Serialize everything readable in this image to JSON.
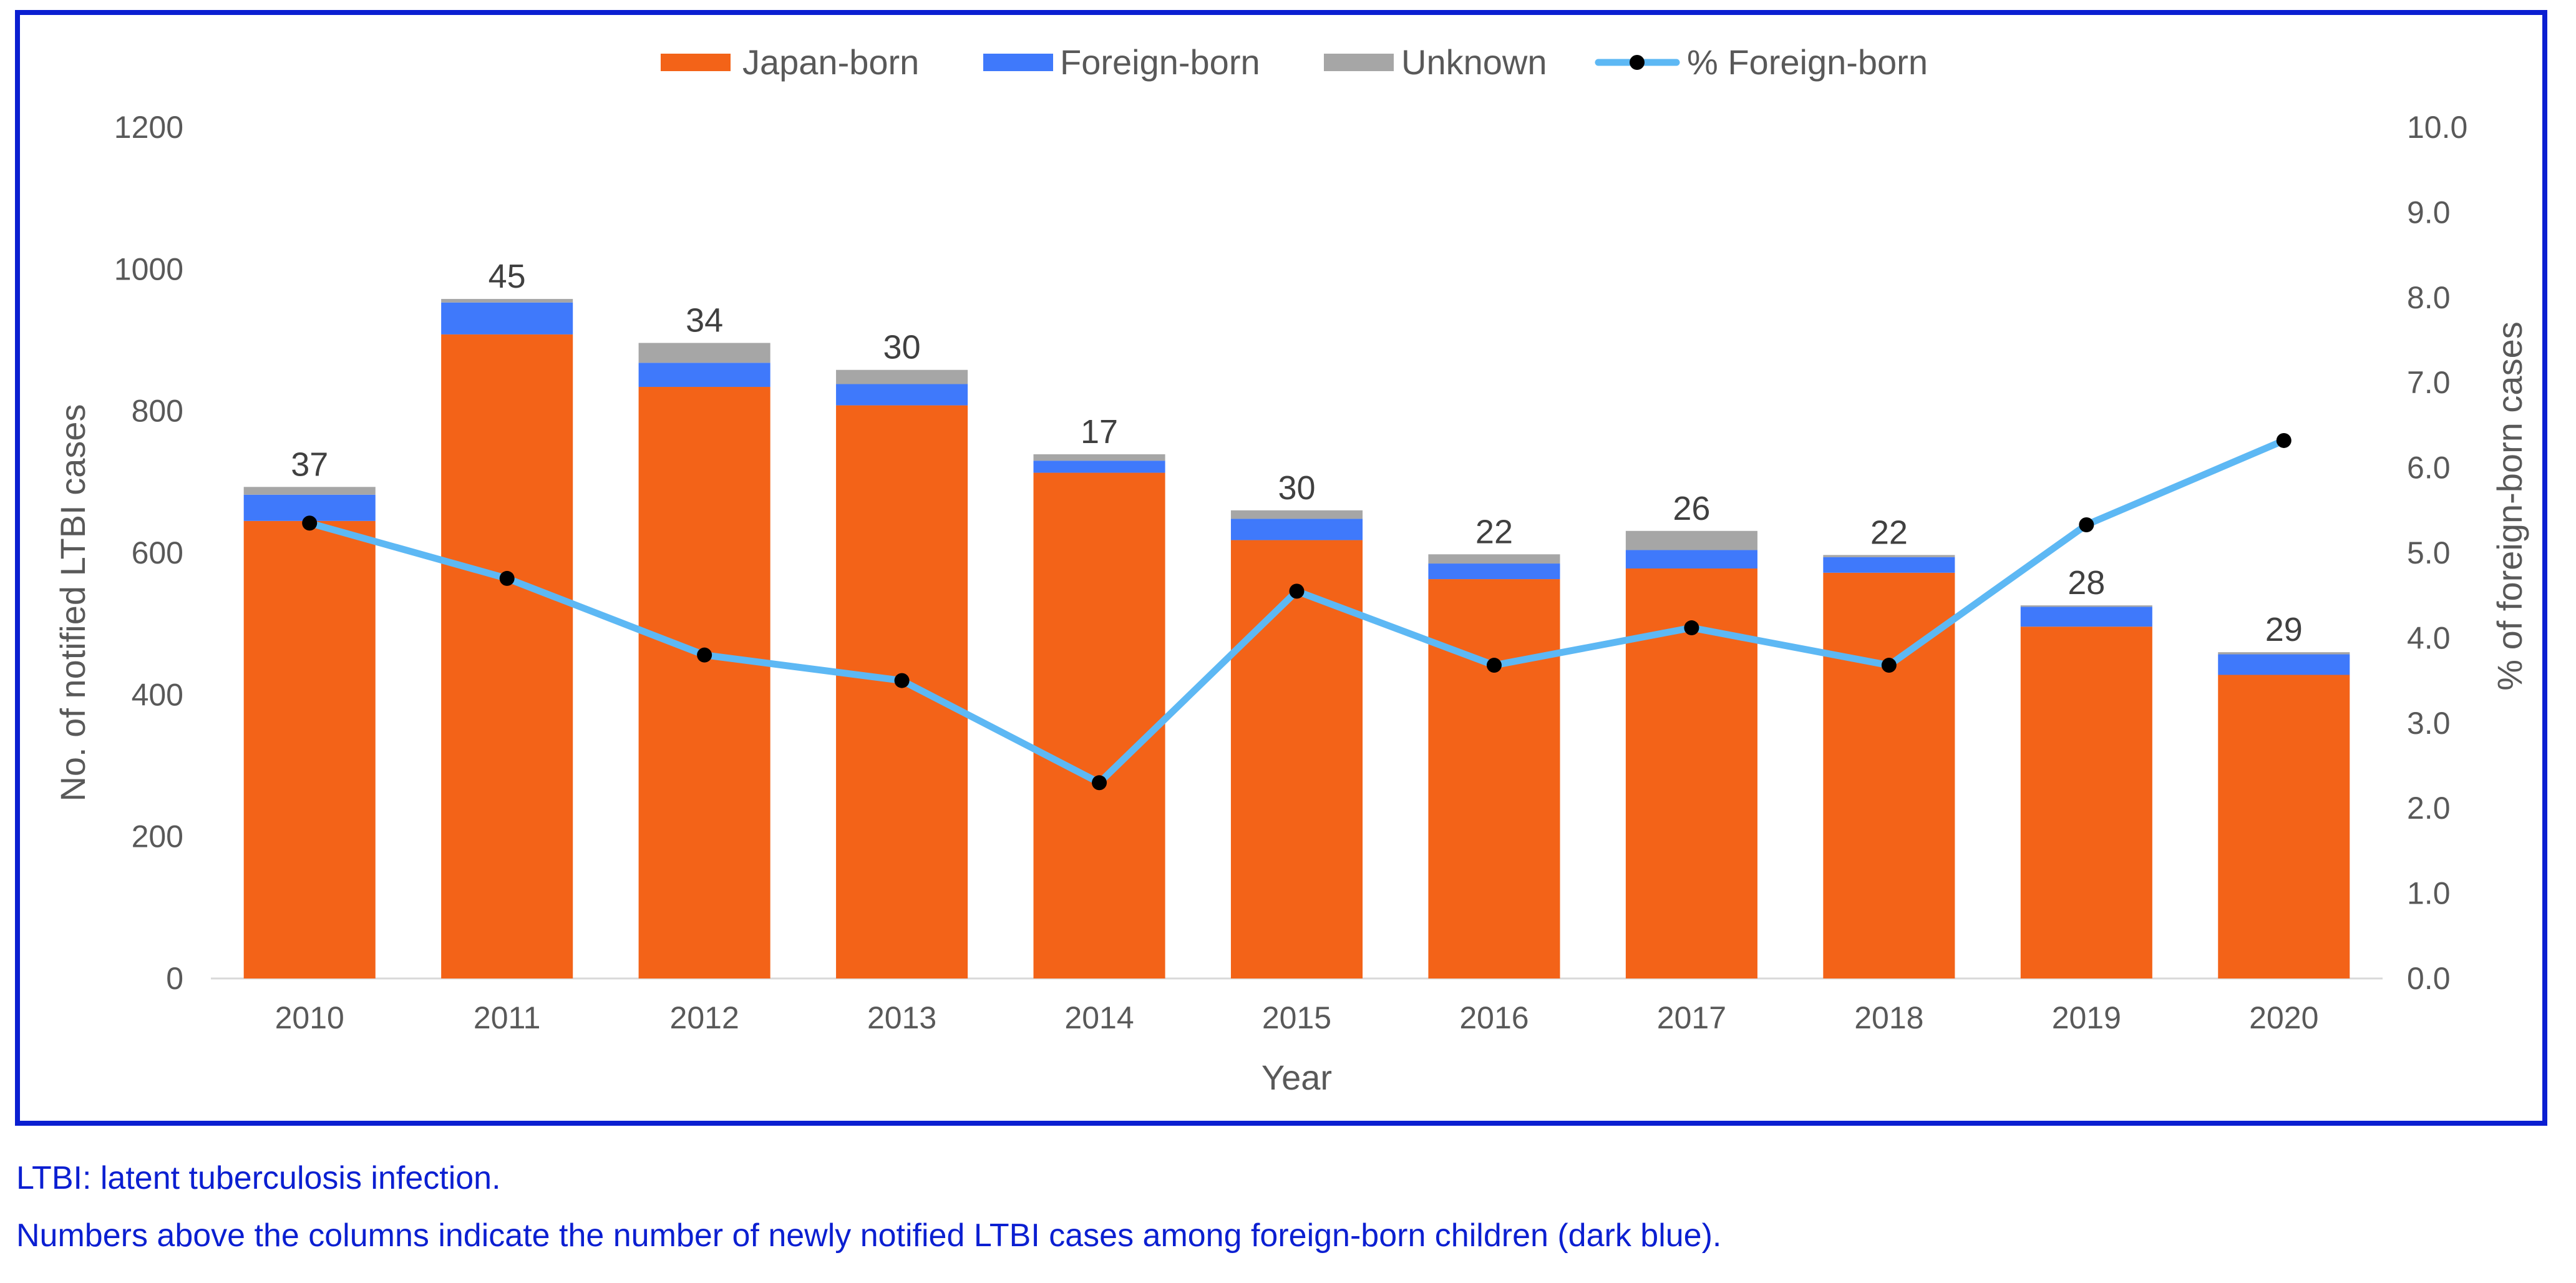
{
  "chart_data": {
    "type": "bar",
    "stacked": true,
    "categories": [
      "2010",
      "2011",
      "2012",
      "2013",
      "2014",
      "2015",
      "2016",
      "2017",
      "2018",
      "2019",
      "2020"
    ],
    "series": [
      {
        "name": "Japan-born",
        "color": "#f36318",
        "values": [
          645,
          908,
          834,
          808,
          713,
          618,
          563,
          578,
          572,
          496,
          428
        ]
      },
      {
        "name": "Foreign-born",
        "color": "#3f79fb",
        "values": [
          37,
          45,
          34,
          30,
          17,
          30,
          22,
          26,
          22,
          28,
          29
        ]
      },
      {
        "name": "Unknown",
        "color": "#a6a6a6",
        "values": [
          11,
          5,
          28,
          20,
          9,
          12,
          13,
          27,
          3,
          2,
          3
        ]
      }
    ],
    "bar_labels": [
      "37",
      "45",
      "34",
      "30",
      "17",
      "30",
      "22",
      "26",
      "22",
      "28",
      "29"
    ],
    "line_series": {
      "name": "% Foreign-born",
      "color": "#5db8f4",
      "marker_color": "#000000",
      "values": [
        5.35,
        4.7,
        3.8,
        3.5,
        2.3,
        4.55,
        3.68,
        4.12,
        3.68,
        5.33,
        6.32
      ]
    },
    "xlabel": "Year",
    "ylabel": "No. of notified LTBI cases",
    "y2label": "% of foreign-born cases",
    "ylim": [
      0,
      1200
    ],
    "y_ticks": [
      "0",
      "200",
      "400",
      "600",
      "800",
      "1000",
      "1200"
    ],
    "y2lim": [
      0,
      10
    ],
    "y2_ticks": [
      "0.0",
      "1.0",
      "2.0",
      "3.0",
      "4.0",
      "5.0",
      "6.0",
      "7.0",
      "8.0",
      "9.0",
      "10.0"
    ],
    "legend": [
      {
        "label": "Japan-born",
        "kind": "bar",
        "color": "#f36318"
      },
      {
        "label": "Foreign-born",
        "kind": "bar",
        "color": "#3f79fb"
      },
      {
        "label": "Unknown",
        "kind": "bar",
        "color": "#a6a6a6"
      },
      {
        "label": "% Foreign-born",
        "kind": "line",
        "color": "#5db8f4"
      }
    ],
    "legend_position": "top-center",
    "grid": false
  },
  "captions": {
    "line1": "LTBI: latent tuberculosis infection.",
    "line2": "Numbers above the columns indicate the number of newly notified LTBI cases among foreign-born children (dark blue)."
  },
  "colors": {
    "frame_border": "#0b1fd1",
    "caption_text": "#0b1fd1",
    "axis_text": "#595959",
    "label_text": "#404040",
    "axis_line": "#d9d9d9"
  }
}
